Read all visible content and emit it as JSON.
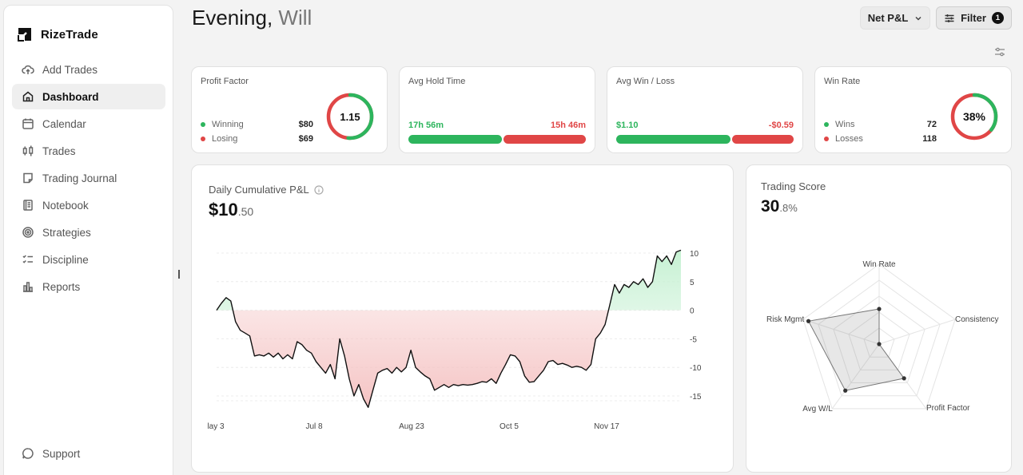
{
  "brand": {
    "name": "RizeTrade"
  },
  "sidebar": {
    "items": [
      {
        "label": "Add Trades",
        "icon": "cloud-upload-icon",
        "active": false
      },
      {
        "label": "Dashboard",
        "icon": "home-icon",
        "active": true
      },
      {
        "label": "Calendar",
        "icon": "calendar-icon",
        "active": false
      },
      {
        "label": "Trades",
        "icon": "candles-icon",
        "active": false
      },
      {
        "label": "Trading Journal",
        "icon": "journal-icon",
        "active": false
      },
      {
        "label": "Notebook",
        "icon": "notebook-icon",
        "active": false
      },
      {
        "label": "Strategies",
        "icon": "target-icon",
        "active": false
      },
      {
        "label": "Discipline",
        "icon": "checklist-icon",
        "active": false
      },
      {
        "label": "Reports",
        "icon": "bar-chart-icon",
        "active": false
      }
    ],
    "support_label": "Support"
  },
  "header": {
    "greeting": "Evening,",
    "user_name": "Will",
    "metric_select": "Net P&L",
    "filter_label": "Filter",
    "filter_count": "1"
  },
  "cards": {
    "profit_factor": {
      "title": "Profit Factor",
      "value": "1.15",
      "winning_label": "Winning",
      "winning_value": "$80",
      "losing_label": "Losing",
      "losing_value": "$69",
      "ring_win_fraction": 0.537
    },
    "avg_hold_time": {
      "title": "Avg Hold Time",
      "win_label": "17h 56m",
      "loss_label": "15h 46m",
      "win_fraction": 0.532
    },
    "avg_win_loss": {
      "title": "Avg Win / Loss",
      "win_label": "$1.10",
      "loss_label": "-$0.59",
      "win_fraction": 0.651
    },
    "win_rate": {
      "title": "Win Rate",
      "value": "38%",
      "wins_label": "Wins",
      "wins_value": "72",
      "losses_label": "Losses",
      "losses_value": "118",
      "ring_win_fraction": 0.379
    }
  },
  "colors": {
    "green": "#2db55d",
    "red": "#e04646"
  },
  "pnl": {
    "title": "Daily Cumulative P&L",
    "value_main": "$10",
    "value_dec": ".50"
  },
  "score": {
    "title": "Trading Score",
    "value_main": "30",
    "value_dec": ".8%"
  },
  "chart_data": [
    {
      "type": "area",
      "title": "Daily Cumulative P&L",
      "ylim": [
        -17,
        11
      ],
      "y_ticks": [
        "10",
        "5",
        "0",
        "-5",
        "-10",
        "-15"
      ],
      "y_tick_values": [
        10,
        5,
        0,
        -5,
        -10,
        -15
      ],
      "x_labels": [
        "lay 3",
        "Jul 8",
        "Aug 23",
        "Oct 5",
        "Nov 17"
      ],
      "grid": true,
      "series": [
        {
          "values": [
            0,
            1.2,
            2.2,
            1.6,
            -2,
            -3.5,
            -4,
            -4.5,
            -8,
            -7.8,
            -8,
            -7.5,
            -8.2,
            -7.5,
            -8.5,
            -7.8,
            -8.5,
            -5.5,
            -6,
            -7,
            -7.5,
            -9,
            -10,
            -11,
            -9.5,
            -12,
            -5,
            -8,
            -12,
            -15,
            -13,
            -15.5,
            -17,
            -14,
            -11,
            -10.5,
            -10.2,
            -11,
            -10,
            -10.8,
            -10,
            -7,
            -10,
            -10.8,
            -11.5,
            -12,
            -14,
            -13.5,
            -13,
            -13.5,
            -13,
            -13.2,
            -13,
            -13.1,
            -13,
            -12.8,
            -12.5,
            -12.6,
            -12,
            -12.8,
            -11,
            -9.5,
            -7.8,
            -8,
            -9,
            -11.5,
            -12.6,
            -12.5,
            -11.5,
            -10.5,
            -9,
            -8.8,
            -9.5,
            -9.3,
            -9.6,
            -10,
            -9.8,
            -10,
            -10.5,
            -9.5,
            -5,
            -4,
            -2.5,
            1,
            4.5,
            3,
            4.5,
            4,
            5,
            4.5,
            5.5,
            4,
            5,
            9.5,
            8.5,
            9.5,
            8,
            10.2,
            10.5
          ]
        }
      ]
    },
    {
      "type": "radar",
      "title": "Trading Score",
      "axes": [
        "Win Rate",
        "Consistency",
        "Profit Factor",
        "Avg W/L",
        "Risk Mgmt"
      ],
      "values": [
        0.44,
        0.0,
        0.53,
        0.72,
        0.93
      ],
      "range": [
        0,
        1
      ]
    }
  ]
}
